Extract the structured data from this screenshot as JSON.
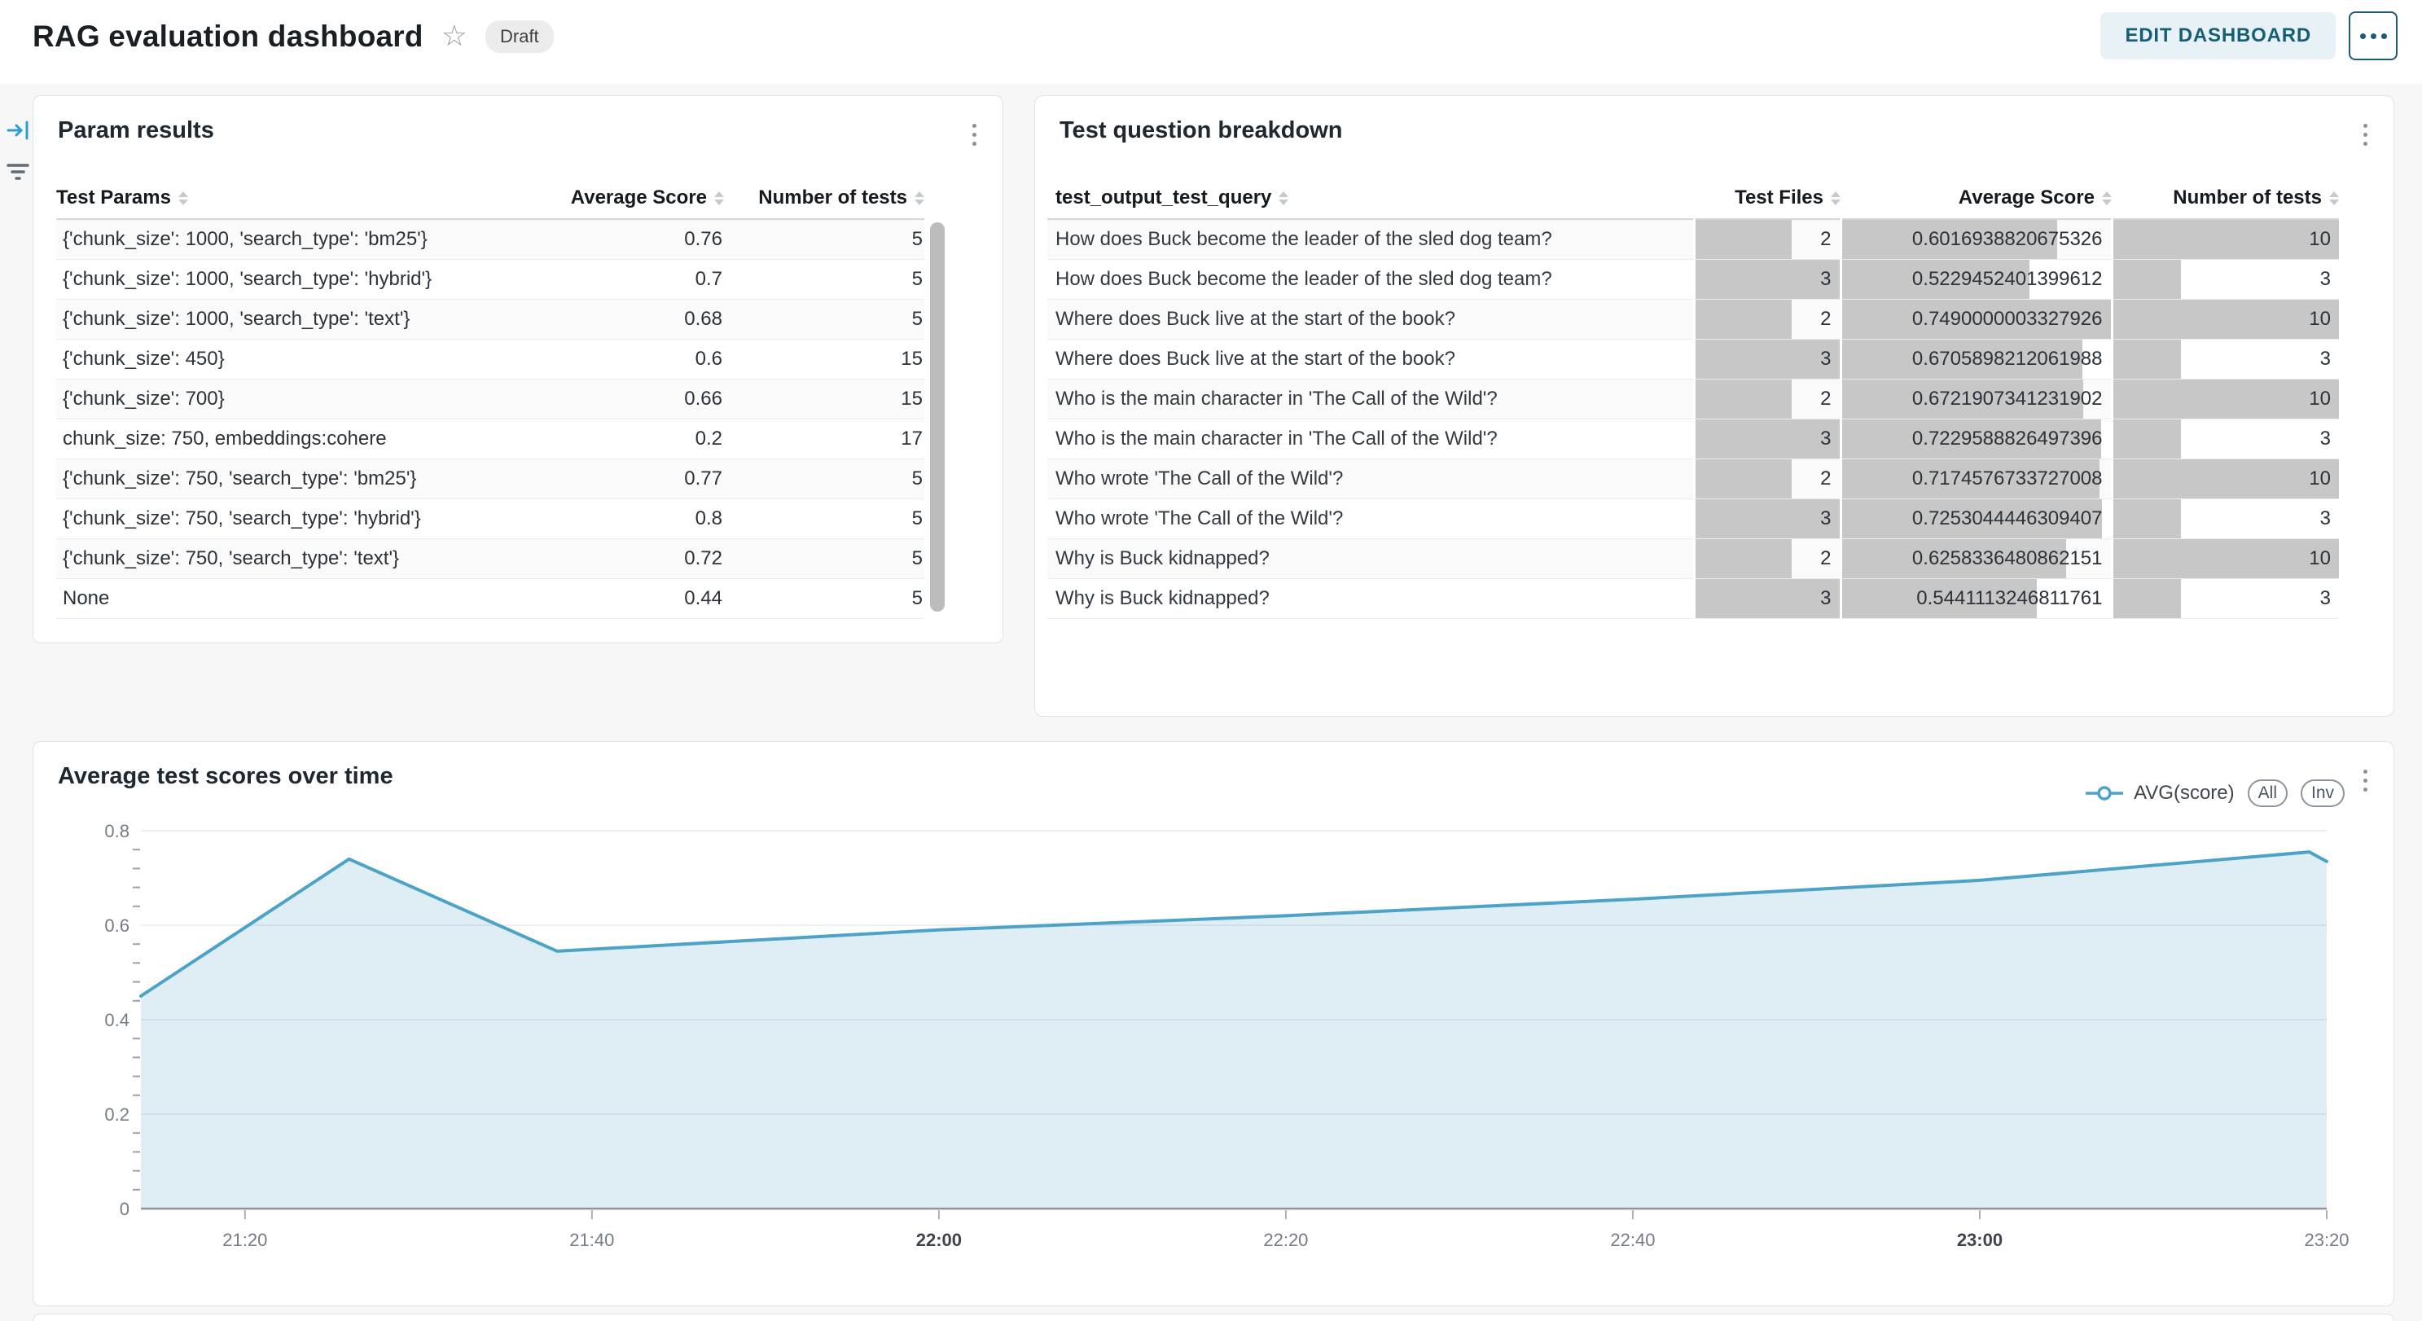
{
  "header": {
    "title": "RAG evaluation dashboard",
    "status_badge": "Draft",
    "edit_button": "EDIT DASHBOARD"
  },
  "param_results": {
    "title": "Param results",
    "columns": [
      "Test Params",
      "Average Score",
      "Number of tests"
    ],
    "rows": [
      [
        "{'chunk_size': 1000, 'search_type': 'bm25'}",
        "0.76",
        "5"
      ],
      [
        "{'chunk_size': 1000, 'search_type': 'hybrid'}",
        "0.7",
        "5"
      ],
      [
        "{'chunk_size': 1000, 'search_type': 'text'}",
        "0.68",
        "5"
      ],
      [
        "{'chunk_size': 450}",
        "0.6",
        "15"
      ],
      [
        "{'chunk_size': 700}",
        "0.66",
        "15"
      ],
      [
        "chunk_size: 750, embeddings:cohere",
        "0.2",
        "17"
      ],
      [
        "{'chunk_size': 750, 'search_type': 'bm25'}",
        "0.77",
        "5"
      ],
      [
        "{'chunk_size': 750, 'search_type': 'hybrid'}",
        "0.8",
        "5"
      ],
      [
        "{'chunk_size': 750, 'search_type': 'text'}",
        "0.72",
        "5"
      ],
      [
        "None",
        "0.44",
        "5"
      ]
    ]
  },
  "question_breakdown": {
    "title": "Test question breakdown",
    "columns": [
      "test_output_test_query",
      "Test Files",
      "Average Score",
      "Number of tests"
    ],
    "bar_max": [
      3,
      0.7490000003327926,
      10
    ],
    "rows": [
      [
        "How does Buck become the leader of the sled dog team?",
        "2",
        "0.6016938820675326",
        "10"
      ],
      [
        "How does Buck become the leader of the sled dog team?",
        "3",
        "0.5229452401399612",
        "3"
      ],
      [
        "Where does Buck live at the start of the book?",
        "2",
        "0.7490000003327926",
        "10"
      ],
      [
        "Where does Buck live at the start of the book?",
        "3",
        "0.6705898212061988",
        "3"
      ],
      [
        "Who is the main character in 'The Call of the Wild'?",
        "2",
        "0.6721907341231902",
        "10"
      ],
      [
        "Who is the main character in 'The Call of the Wild'?",
        "3",
        "0.7229588826497396",
        "3"
      ],
      [
        "Who wrote 'The Call of the Wild'?",
        "2",
        "0.7174576733727008",
        "10"
      ],
      [
        "Who wrote 'The Call of the Wild'?",
        "3",
        "0.7253044446309407",
        "3"
      ],
      [
        "Why is Buck kidnapped?",
        "2",
        "0.6258336480862151",
        "10"
      ],
      [
        "Why is Buck kidnapped?",
        "3",
        "0.5441113246811761",
        "3"
      ]
    ]
  },
  "chart_card": {
    "title": "Average test scores over time",
    "legend_label": "AVG(score)",
    "legend_buttons": [
      "All",
      "Inv"
    ]
  },
  "chart_data": {
    "type": "area",
    "title": "Average test scores over time",
    "series": [
      {
        "name": "AVG(score)",
        "points": [
          [
            "21:14",
            0.45
          ],
          [
            "21:26",
            0.74
          ],
          [
            "21:38",
            0.545
          ],
          [
            "22:00",
            0.59
          ],
          [
            "22:20",
            0.62
          ],
          [
            "22:40",
            0.655
          ],
          [
            "23:00",
            0.695
          ],
          [
            "23:19",
            0.755
          ],
          [
            "23:20",
            0.735
          ]
        ]
      }
    ],
    "x_range": [
      "21:14",
      "23:20"
    ],
    "x_ticks": [
      "21:20",
      "21:40",
      "22:00",
      "22:20",
      "22:40",
      "23:00",
      "23:20"
    ],
    "x_ticks_bold": [
      "22:00",
      "23:00"
    ],
    "ylim": [
      0,
      0.8
    ],
    "y_major_ticks": [
      0,
      0.2,
      0.4,
      0.6,
      0.8
    ],
    "y_minor_step": 0.04,
    "grid": true,
    "legend_position": "top-right",
    "xlabel": "",
    "ylabel": ""
  },
  "colors": {
    "line": "#4DA2C7",
    "area_fill": "rgba(77,162,199,0.18)",
    "grid_line": "#e6eaf2",
    "axis_line": "#8f959b",
    "tick_label": "#757c85",
    "tick_label_bold": "#3d444b",
    "bar_gray": "#C7C7C7",
    "edit_button_bg": "#E8F2F6",
    "edit_button_text": "#155E75"
  }
}
